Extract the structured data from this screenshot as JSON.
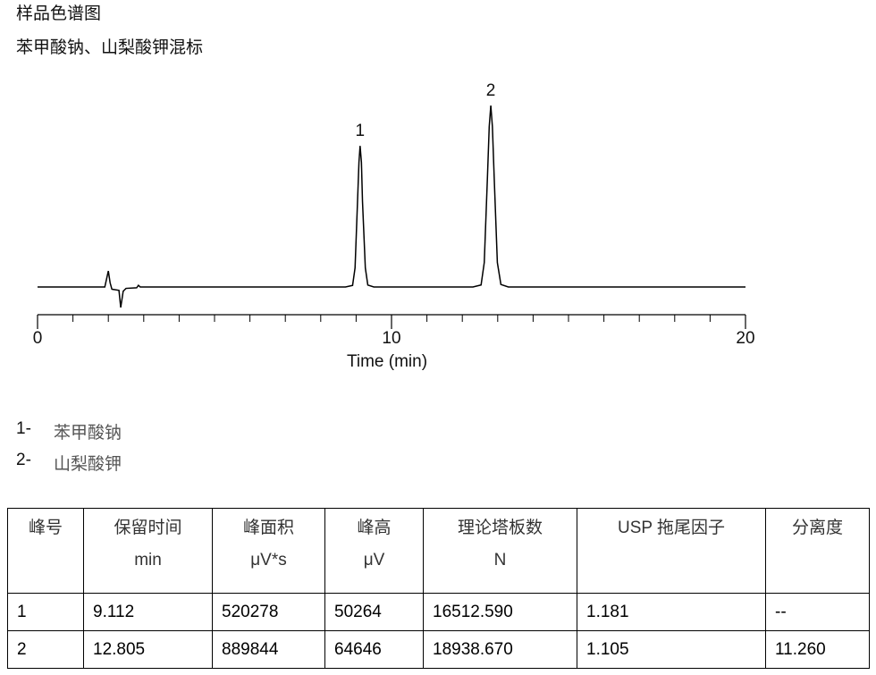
{
  "header": {
    "title": "样品色谱图",
    "subtitle": "苯甲酸钠、山梨酸钾混标"
  },
  "chart_data": {
    "type": "line",
    "color": "#000000",
    "x_label": "Time (min)",
    "xlim": [
      0,
      20
    ],
    "xticks": [
      0,
      10,
      20
    ],
    "minor_xticks": [
      1,
      2,
      3,
      4,
      5,
      6,
      7,
      8,
      9,
      11,
      12,
      13,
      14,
      15,
      16,
      17,
      18,
      19
    ],
    "ylim": [
      -8000,
      70000
    ],
    "peak_labels": [
      "1",
      "2"
    ],
    "x": [
      0,
      1.9,
      2.0,
      2.05,
      2.1,
      2.3,
      2.35,
      2.42,
      2.5,
      2.8,
      2.85,
      2.9,
      8.7,
      8.9,
      8.97,
      9.04,
      9.08,
      9.112,
      9.15,
      9.18,
      9.26,
      9.33,
      9.5,
      12.3,
      12.53,
      12.62,
      12.71,
      12.76,
      12.805,
      12.85,
      12.9,
      12.99,
      13.09,
      13.3,
      20
    ],
    "values": [
      0,
      0,
      5700,
      1500,
      -800,
      -1200,
      -7300,
      -1500,
      -500,
      -300,
      600,
      0,
      0,
      560,
      6800,
      30500,
      44400,
      50264,
      44400,
      30500,
      6800,
      700,
      0,
      0,
      700,
      8700,
      39200,
      57100,
      64646,
      57100,
      39200,
      8700,
      900,
      0,
      0
    ]
  },
  "peaks": [
    {
      "number": "1-",
      "name": "苯甲酸钠"
    },
    {
      "number": "2-",
      "name": "山梨酸钾"
    }
  ],
  "table": {
    "columns": [
      {
        "name": "峰号"
      },
      {
        "name": "保留时间",
        "unit": "min"
      },
      {
        "name": "峰面积",
        "unit": "μV*s"
      },
      {
        "name": "峰高",
        "unit": "μV"
      },
      {
        "name": "理论塔板数",
        "unit": "N"
      },
      {
        "name": "USP 拖尾因子"
      },
      {
        "name": "分离度"
      }
    ],
    "rows": [
      [
        "1",
        "9.112",
        "520278",
        "50264",
        "16512.590",
        "1.181",
        "--"
      ],
      [
        "2",
        "12.805",
        "889844",
        "64646",
        "18938.670",
        "1.105",
        "11.260"
      ]
    ]
  }
}
